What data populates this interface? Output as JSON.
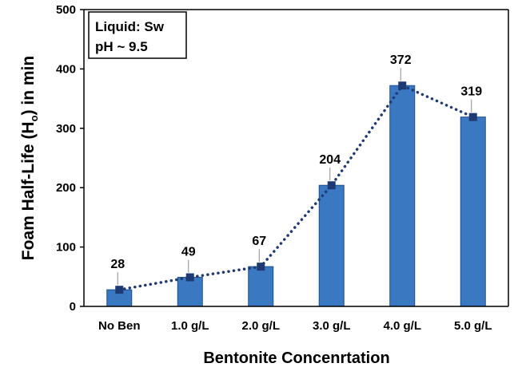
{
  "chart_data": {
    "type": "bar",
    "categories": [
      "No Ben",
      "1.0 g/L",
      "2.0 g/L",
      "3.0 g/L",
      "4.0 g/L",
      "5.0 g/L"
    ],
    "values": [
      28,
      49,
      67,
      204,
      372,
      319
    ],
    "data_labels": [
      "28",
      "49",
      "67",
      "204",
      "372",
      "319"
    ],
    "ylabel_main": "Foam Half-Life (H",
    "ylabel_sub": "o",
    "ylabel_tail": ") in min",
    "xlabel": "Bentonite Concenrtation",
    "ylim": [
      0,
      500
    ],
    "yticks": [
      0,
      100,
      200,
      300,
      400,
      500
    ],
    "ytick_labels": [
      "0",
      "100",
      "200",
      "300",
      "400",
      "500"
    ],
    "grid": false,
    "overlay": "dotted line with square markers through bar tops",
    "annotation": {
      "line1": "Liquid: Sw",
      "line2": "pH ~ 9.5",
      "placement": "top-left"
    },
    "colors": {
      "bar_fill": "#3a78c2",
      "bar_stroke": "#1f4e8c",
      "line": "#1f3a73",
      "marker": "#1f3a73",
      "axis": "#000000",
      "text": "#000000"
    }
  }
}
